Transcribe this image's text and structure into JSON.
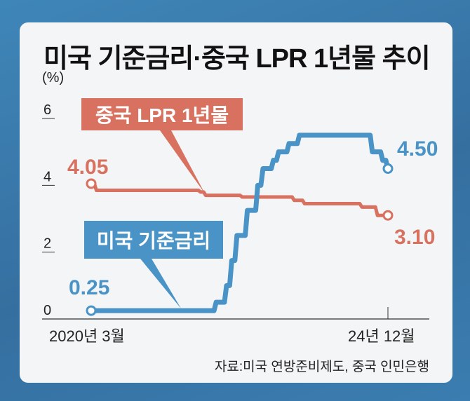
{
  "chart_data": {
    "type": "line",
    "title": "미국 기준금리·중국 LPR 1년물 추이",
    "ylabel": "(%)",
    "ylim": [
      0,
      6
    ],
    "yticks": [
      "0",
      "2",
      "4",
      "6"
    ],
    "x_start": "2020-03",
    "x_end": "2024-12",
    "xtick_labels": [
      "2020년 3월",
      "24년 12월"
    ],
    "source": "자료:미국 연방준비제도, 중국 인민은행",
    "colors": {
      "us": "#4a93c7",
      "china": "#d8715f"
    },
    "series": [
      {
        "name": "미국 기준금리",
        "start_label": "0.25",
        "end_label": "4.50",
        "steps": [
          [
            "2020-03",
            0.25
          ],
          [
            "2022-03",
            0.5
          ],
          [
            "2022-05",
            1.0
          ],
          [
            "2022-06",
            1.75
          ],
          [
            "2022-07",
            2.5
          ],
          [
            "2022-09",
            3.25
          ],
          [
            "2022-11",
            4.0
          ],
          [
            "2022-12",
            4.5
          ],
          [
            "2023-02",
            4.75
          ],
          [
            "2023-03",
            5.0
          ],
          [
            "2023-05",
            5.25
          ],
          [
            "2023-07",
            5.5
          ],
          [
            "2024-09",
            5.0
          ],
          [
            "2024-11",
            4.75
          ],
          [
            "2024-12",
            4.5
          ]
        ]
      },
      {
        "name": "중국 LPR 1년물",
        "start_label": "4.05",
        "end_label": "3.10",
        "steps": [
          [
            "2020-03",
            4.05
          ],
          [
            "2020-04",
            3.85
          ],
          [
            "2021-12",
            3.8
          ],
          [
            "2022-01",
            3.7
          ],
          [
            "2022-08",
            3.65
          ],
          [
            "2023-06",
            3.55
          ],
          [
            "2023-08",
            3.45
          ],
          [
            "2024-07",
            3.35
          ],
          [
            "2024-10",
            3.1
          ],
          [
            "2024-12",
            3.1
          ]
        ]
      }
    ]
  }
}
